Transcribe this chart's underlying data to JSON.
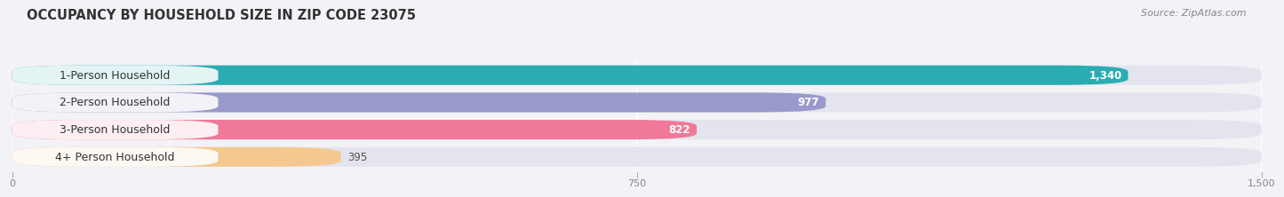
{
  "title": "OCCUPANCY BY HOUSEHOLD SIZE IN ZIP CODE 23075",
  "source": "Source: ZipAtlas.com",
  "categories": [
    "1-Person Household",
    "2-Person Household",
    "3-Person Household",
    "4+ Person Household"
  ],
  "values": [
    1340,
    977,
    822,
    395
  ],
  "bar_colors": [
    "#29adb2",
    "#9999cc",
    "#f07898",
    "#f5c890"
  ],
  "xlim": [
    0,
    1500
  ],
  "xticks": [
    0,
    750,
    1500
  ],
  "bg_color": "#f2f2f7",
  "bar_bg_color": "#e4e4ee",
  "title_fontsize": 10.5,
  "source_fontsize": 8,
  "bar_label_fontsize": 8.5,
  "cat_label_fontsize": 9,
  "value_inside_threshold": 822,
  "fig_width": 14.06,
  "fig_height": 2.33
}
